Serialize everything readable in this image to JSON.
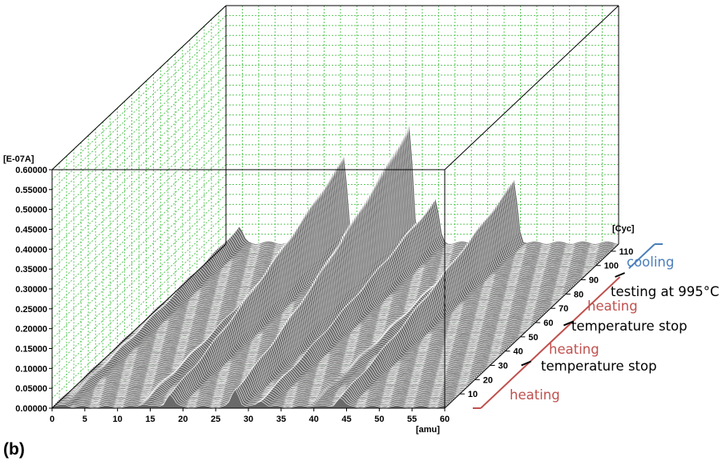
{
  "figure": {
    "panel_label": "(b)"
  },
  "chart_data": {
    "type": "waterfall-3d",
    "y_unit": "[E-07A]",
    "x_unit": "[amu]",
    "z_unit": "[Cyc]",
    "y_ticks": [
      "0.00000",
      "0.05000",
      "0.10000",
      "0.15000",
      "0.20000",
      "0.25000",
      "0.30000",
      "0.35000",
      "0.40000",
      "0.45000",
      "0.50000",
      "0.55000",
      "0.60000"
    ],
    "y_tick_values": [
      0,
      0.05,
      0.1,
      0.15,
      0.2,
      0.25,
      0.3,
      0.35,
      0.4,
      0.45,
      0.5,
      0.55,
      0.6
    ],
    "ylim": [
      0,
      0.6
    ],
    "x_ticks": [
      "0",
      "5",
      "10",
      "15",
      "20",
      "25",
      "30",
      "35",
      "40",
      "45",
      "50",
      "55",
      "60"
    ],
    "x_tick_values": [
      0,
      5,
      10,
      15,
      20,
      25,
      30,
      35,
      40,
      45,
      50,
      55,
      60
    ],
    "xlim": [
      0,
      60
    ],
    "z_ticks": [
      "10",
      "20",
      "30",
      "40",
      "50",
      "60",
      "70",
      "80",
      "90",
      "100",
      "110"
    ],
    "z_tick_values": [
      10,
      20,
      30,
      40,
      50,
      60,
      70,
      80,
      90,
      100,
      110
    ],
    "zlim": [
      0,
      115
    ],
    "grid": true,
    "peaks": [
      {
        "mass": 2,
        "height": 0.04
      },
      {
        "mass": 14,
        "height": 0.06
      },
      {
        "mass": 18,
        "height": 0.22
      },
      {
        "mass": 28,
        "height": 0.3
      },
      {
        "mass": 32,
        "height": 0.11
      },
      {
        "mass": 44,
        "height": 0.16
      },
      {
        "mass": 40,
        "height": 0.03
      }
    ],
    "annotations": [
      {
        "text": "cooling",
        "color": "#4a7ebb",
        "cycle_from": 98,
        "cycle_to": 115
      },
      {
        "text": "testing at 995°C",
        "color": "#000000",
        "cycle_at": 92
      },
      {
        "text": "heating",
        "color": "#c0504d",
        "cycle_from": 58,
        "cycle_to": 92
      },
      {
        "text": "temperature stop",
        "color": "#000000",
        "cycle_at": 58
      },
      {
        "text": "heating",
        "color": "#c0504d",
        "cycle_from": 30,
        "cycle_to": 58
      },
      {
        "text": "temperature stop",
        "color": "#000000",
        "cycle_at": 30
      },
      {
        "text": "heating",
        "color": "#c0504d",
        "cycle_from": 0,
        "cycle_to": 30
      }
    ]
  }
}
